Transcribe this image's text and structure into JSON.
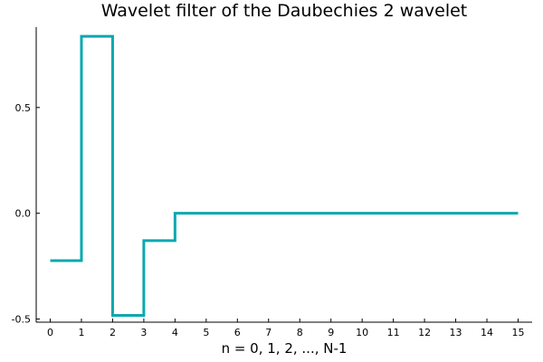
{
  "chart_data": {
    "type": "line",
    "step": "post",
    "title": "Wavelet filter of the Daubechies 2 wavelet",
    "xlabel": "n = 0, 1, 2, ..., N-1",
    "ylabel": "",
    "xlim": [
      -0.45,
      15.45
    ],
    "ylim": [
      -0.515,
      0.88
    ],
    "xticks": [
      0,
      1,
      2,
      3,
      4,
      5,
      6,
      7,
      8,
      9,
      10,
      11,
      12,
      13,
      14,
      15
    ],
    "xtick_labels": [
      "0",
      "1",
      "2",
      "3",
      "4",
      "5",
      "6",
      "7",
      "8",
      "9",
      "10",
      "11",
      "12",
      "13",
      "14",
      "15"
    ],
    "yticks": [
      -0.5,
      0.0,
      0.5
    ],
    "ytick_labels": [
      "-0.5",
      "0.0",
      "0.5"
    ],
    "grid": false,
    "legend": "none",
    "color": "#0aa8b0",
    "series": [
      {
        "x": [
          0,
          1,
          2,
          3,
          4,
          15
        ],
        "y": [
          -0.2241,
          0.8365,
          -0.483,
          -0.1294,
          0.0,
          0.0
        ]
      }
    ]
  }
}
